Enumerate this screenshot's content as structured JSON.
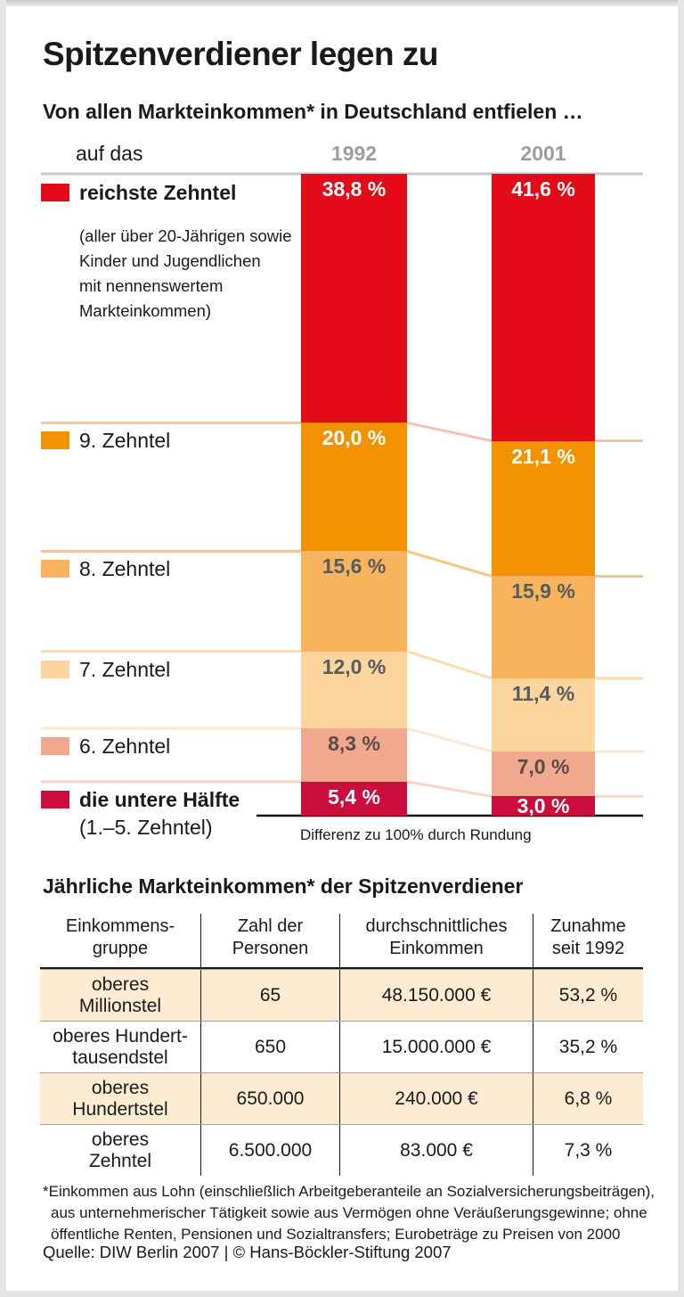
{
  "header": {
    "title": "Spitzenverdiener legen zu",
    "subtitle": "Von allen Markteinkommen* in Deutschland entfielen …",
    "row_label": "auf das",
    "col_1992": "1992",
    "col_2001": "2001"
  },
  "chart_data": {
    "type": "bar",
    "variant": "stacked-100%-comparison",
    "title": "Von allen Markteinkommen* in Deutschland entfielen …",
    "categories": [
      "1992",
      "2001"
    ],
    "unit": "%",
    "ylim": [
      0,
      100
    ],
    "legend_position": "left",
    "grid": false,
    "series": [
      {
        "name": "reichste Zehntel",
        "values": [
          38.8,
          41.6
        ],
        "display": [
          "38,8 %",
          "41,6 %"
        ],
        "color": "#e30b17",
        "value_text_color": "#ffffff",
        "line_color": null,
        "legend_bold": true,
        "legend_note_lines": [
          "(aller über 20-Jährigen sowie",
          "Kinder und Jugendlichen",
          "mit nennenswertem",
          "Markteinkommen)"
        ],
        "legend_note_style": "small"
      },
      {
        "name": "9. Zehntel",
        "values": [
          20.0,
          21.1
        ],
        "display": [
          "20,0 %",
          "21,1 %"
        ],
        "color": "#f29200",
        "value_text_color": "#ffffff",
        "line_color": "#f5c2af",
        "legend_bold": false,
        "legend_note_lines": [],
        "legend_note_style": null
      },
      {
        "name": "8. Zehntel",
        "values": [
          15.6,
          15.9
        ],
        "display": [
          "15,6 %",
          "15,9 %"
        ],
        "color": "#f8b45c",
        "value_text_color": "#565a61",
        "line_color": "#f7c67e",
        "legend_bold": false,
        "legend_note_lines": [],
        "legend_note_style": null
      },
      {
        "name": "7. Zehntel",
        "values": [
          12.0,
          11.4
        ],
        "display": [
          "12,0 %",
          "11,4 %"
        ],
        "color": "#fbd49e",
        "value_text_color": "#565a61",
        "line_color": "#fcdcaa",
        "legend_bold": false,
        "legend_note_lines": [],
        "legend_note_style": null
      },
      {
        "name": "6. Zehntel",
        "values": [
          8.3,
          7.0
        ],
        "display": [
          "8,3 %",
          "7,0 %"
        ],
        "color": "#f2a88f",
        "value_text_color": "#5d4b48",
        "line_color": "#fce8cc",
        "legend_bold": false,
        "legend_note_lines": [],
        "legend_note_style": null
      },
      {
        "name": "die untere Hälfte",
        "values": [
          5.4,
          3.0
        ],
        "display": [
          "5,4 %",
          "3,0 %"
        ],
        "color": "#cc0e3c",
        "value_text_color": "#ffffff",
        "line_color": "#f9d4c7",
        "legend_bold": true,
        "legend_note_lines": [
          "(1.–5. Zehntel)"
        ],
        "legend_note_style": "large"
      }
    ],
    "baseline_note": "Differenz zu 100% durch Rundung",
    "axis_line_color": "#c9c9c9",
    "baseline_color": "#111111"
  },
  "table": {
    "title": "Jährliche Markteinkommen* der Spitzenverdiener",
    "columns": [
      [
        "Einkommens-",
        "gruppe"
      ],
      [
        "Zahl der",
        "Personen"
      ],
      [
        "durchschnittliches",
        "Einkommen"
      ],
      [
        "Zunahme",
        "seit 1992"
      ]
    ],
    "rows": [
      {
        "group": [
          "oberes",
          "Millionstel"
        ],
        "persons": "65",
        "income": "48.150.000 €",
        "increase": "53,2 %",
        "shaded": true
      },
      {
        "group": [
          "oberes Hundert-",
          "tausendstel"
        ],
        "persons": "650",
        "income": "15.000.000 €",
        "increase": "35,2 %",
        "shaded": false
      },
      {
        "group": [
          "oberes",
          "Hundertstel"
        ],
        "persons": "650.000",
        "income": "240.000 €",
        "increase": "6,8 %",
        "shaded": true
      },
      {
        "group": [
          "oberes",
          "Zehntel"
        ],
        "persons": "6.500.000",
        "income": "83.000 €",
        "increase": "7,3 %",
        "shaded": false
      }
    ],
    "shade_color": "#fdecd2"
  },
  "footnote": {
    "lines": [
      "*Einkommen aus Lohn (einschließlich Arbeitgeberanteile an Sozialversicherungsbeiträgen),",
      "aus unternehmerischer Tätigkeit sowie aus Vermögen ohne Veräußerungsgewinne; ohne",
      "öffentliche Renten, Pensionen und Sozialtransfers; Eurobeträge zu Preisen von 2000"
    ]
  },
  "source": "Quelle: DIW Berlin 2007 | © Hans-Böckler-Stiftung 2007"
}
